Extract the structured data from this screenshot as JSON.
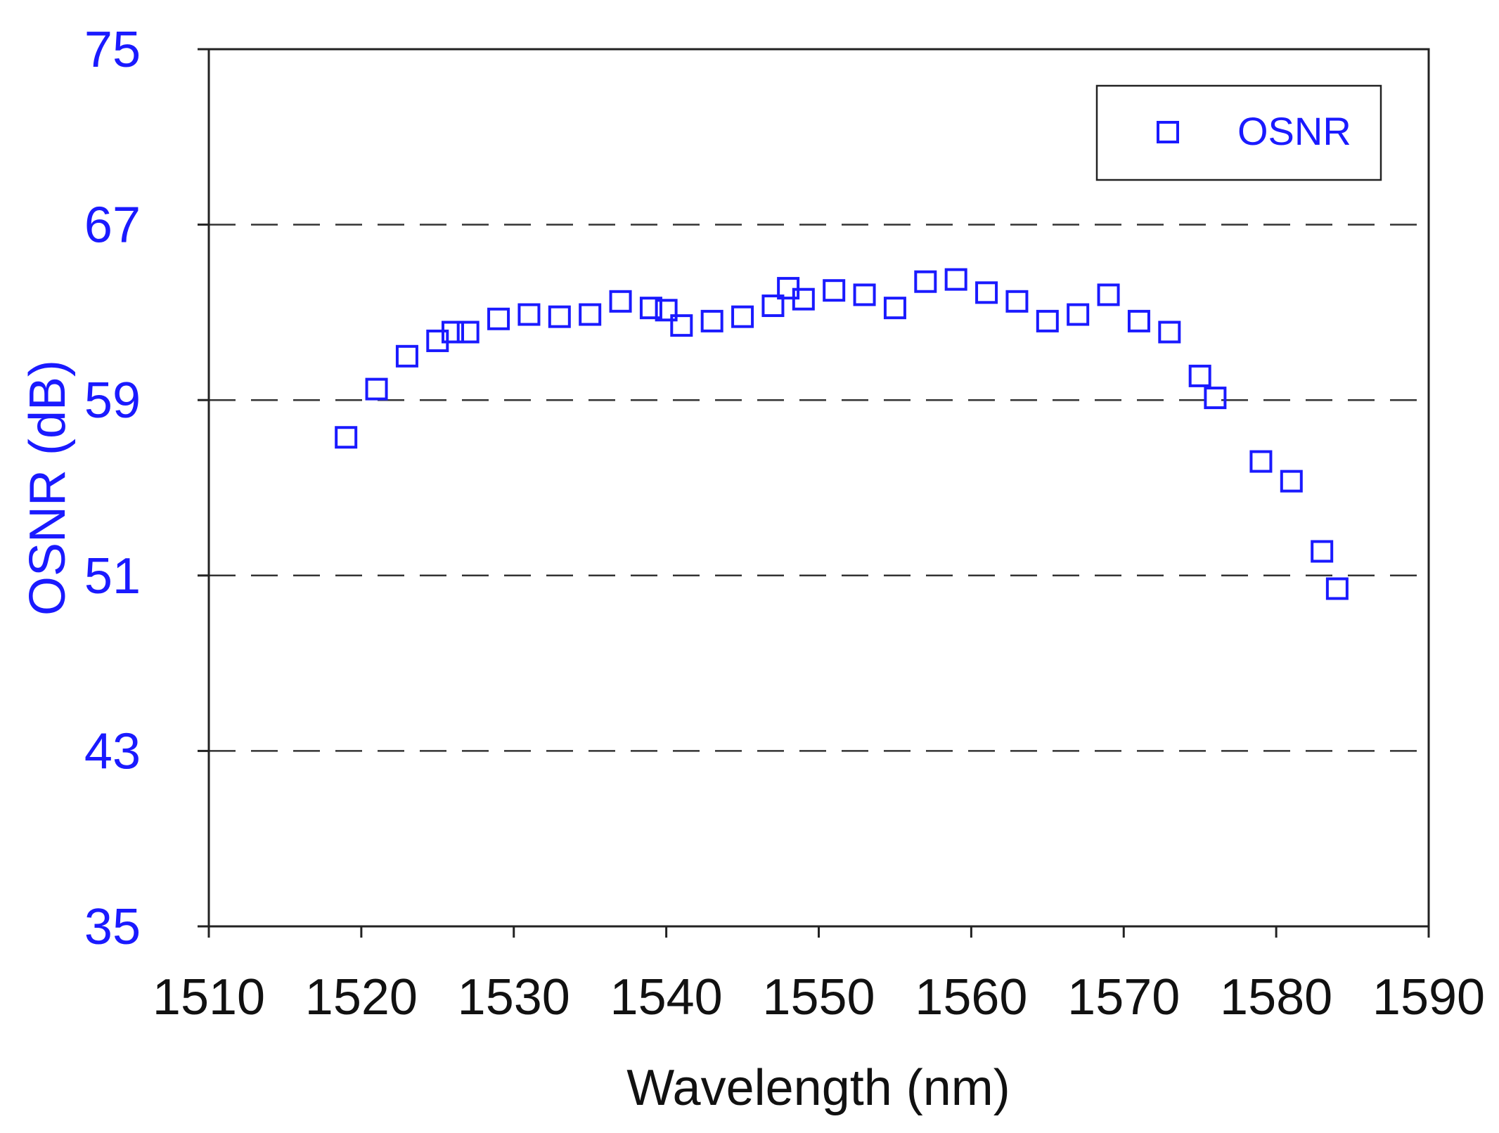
{
  "chart_data": {
    "type": "scatter",
    "xlabel": "Wavelength (nm)",
    "ylabel": "OSNR (dB)",
    "xlim": [
      1510,
      1590
    ],
    "ylim": [
      35,
      75
    ],
    "xticks": [
      "1510",
      "1520",
      "1530",
      "1540",
      "1550",
      "1560",
      "1570",
      "1580",
      "1590"
    ],
    "yticks": [
      "35",
      "43",
      "51",
      "59",
      "67",
      "75"
    ],
    "gridlines_y": [
      43,
      51,
      59,
      67
    ],
    "grid": "horizontal dashed",
    "legend_position": "top-right",
    "colors": {
      "series": "#1a1aff",
      "ylabel": "#1a1aff",
      "yticks": "#1a1aff",
      "xticks": "#111111",
      "xlabel": "#111111",
      "grid": "#333333",
      "frame": "#222222"
    },
    "series": [
      {
        "name": "OSNR",
        "marker": "open-square",
        "x": [
          1519,
          1521,
          1523,
          1525,
          1526,
          1527,
          1529,
          1531,
          1533,
          1535,
          1537,
          1539,
          1540,
          1541,
          1543,
          1545,
          1547,
          1548,
          1549,
          1551,
          1553,
          1555,
          1557,
          1559,
          1561,
          1563,
          1565,
          1567,
          1569,
          1571,
          1573,
          1575,
          1576,
          1579,
          1581,
          1583,
          1584
        ],
        "y": [
          57.3,
          59.5,
          61.0,
          61.7,
          62.1,
          62.1,
          62.7,
          62.9,
          62.8,
          62.9,
          63.5,
          63.2,
          63.1,
          62.4,
          62.6,
          62.8,
          63.3,
          64.1,
          63.6,
          64.0,
          63.8,
          63.2,
          64.4,
          64.5,
          63.9,
          63.5,
          62.6,
          62.9,
          63.8,
          62.6,
          62.1,
          60.1,
          59.1,
          56.2,
          55.3,
          52.1,
          50.4
        ]
      }
    ]
  }
}
